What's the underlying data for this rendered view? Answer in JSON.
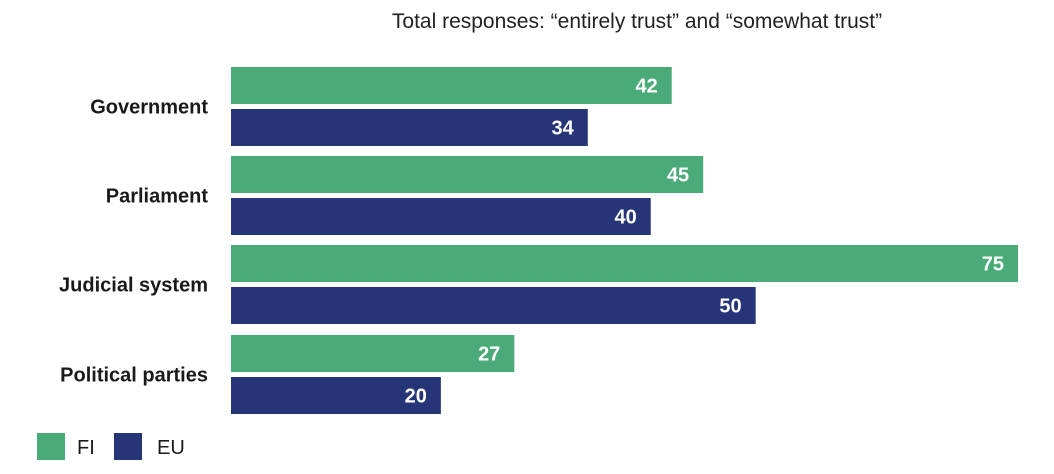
{
  "chart_data": {
    "type": "bar",
    "orientation": "horizontal",
    "title": "Total responses: “entirely trust” and “somewhat trust”",
    "xlabel": "",
    "ylabel": "",
    "xlim": [
      0,
      75
    ],
    "grid": false,
    "legend_position": "bottom-left",
    "categories": [
      "Government",
      "Parliament",
      "Judicial system",
      "Political parties"
    ],
    "series": [
      {
        "name": "FI",
        "color": "#4aab78",
        "values": [
          42,
          45,
          75,
          27
        ]
      },
      {
        "name": "EU",
        "color": "#263578",
        "values": [
          34,
          40,
          50,
          20
        ]
      }
    ]
  }
}
